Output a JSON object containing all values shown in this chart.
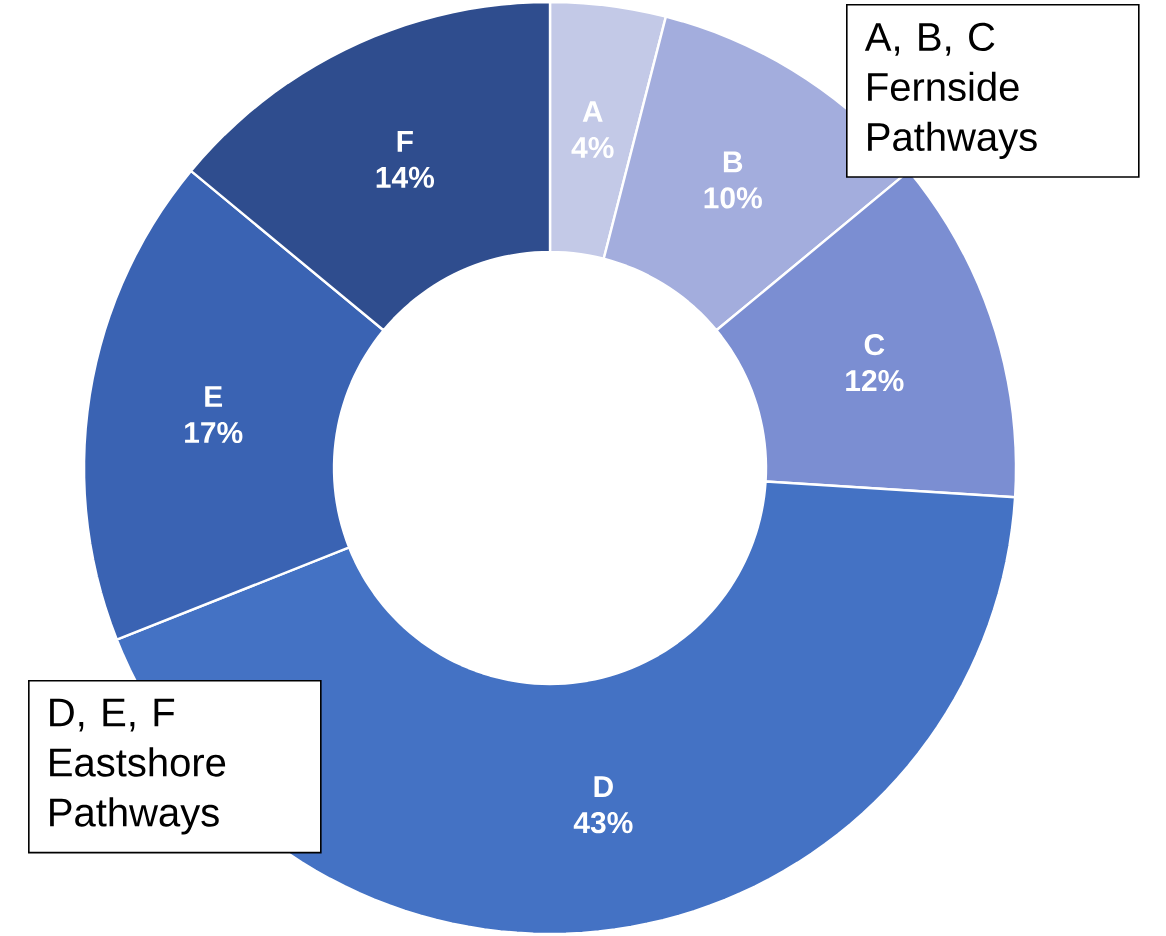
{
  "chart_data": {
    "type": "donut",
    "categories": [
      "A",
      "B",
      "C",
      "D",
      "E",
      "F"
    ],
    "values": [
      4,
      10,
      12,
      43,
      17,
      14
    ],
    "value_labels": [
      "4%",
      "10%",
      "12%",
      "43%",
      "17%",
      "14%"
    ],
    "colors": [
      "#c3c9e7",
      "#a3addd",
      "#7b8ed2",
      "#4472c4",
      "#3a63b3",
      "#2f4d8e"
    ],
    "annotations": [
      "A, B, C Fernside Pathways",
      "D, E, F Eastshore Pathways"
    ]
  }
}
